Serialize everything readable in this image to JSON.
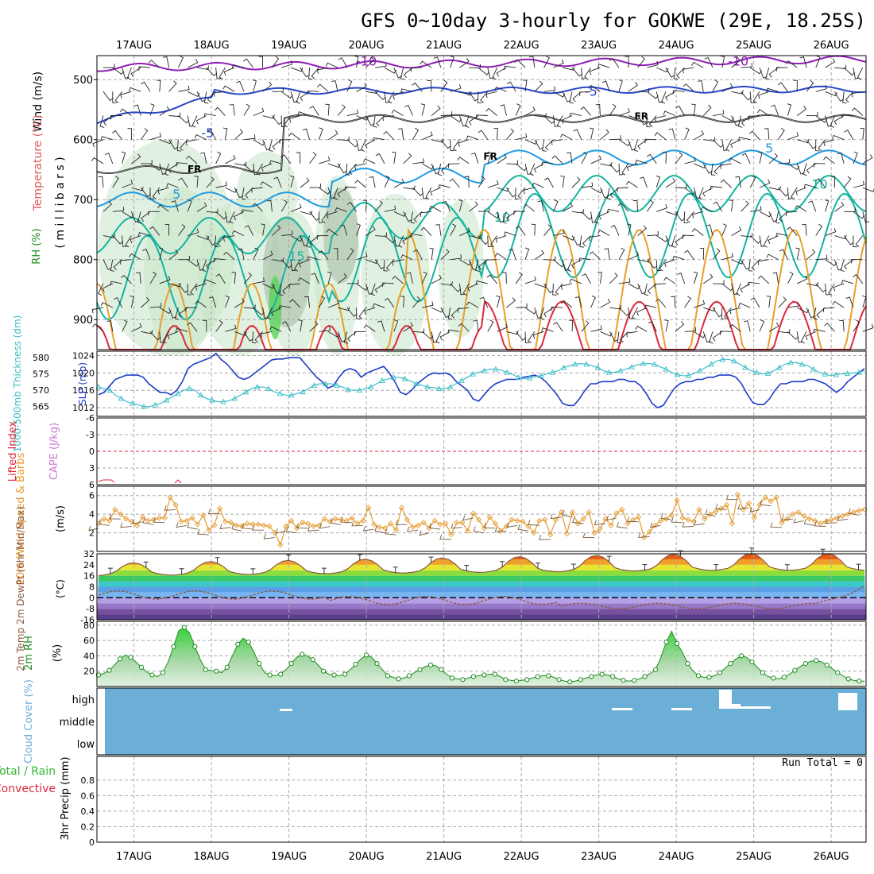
{
  "title": "GFS 0~10day 3-hourly for GOKWE (29E, 18.25S)",
  "date_labels": [
    "17AUG",
    "18AUG",
    "19AUG",
    "20AUG",
    "21AUG",
    "22AUG",
    "23AUG",
    "24AUG",
    "25AUG",
    "26AUG"
  ],
  "colors": {
    "purple": "#8e1eb4",
    "blue": "#2747c8",
    "freeze": "#000000",
    "lightblue": "#1e9be1",
    "teal": "#14b4a0",
    "orange": "#e6a028",
    "red": "#dc283c",
    "rh_green": "#c8e6c8",
    "slp": "#1e3cc8",
    "thick": "#3cbec8",
    "wind": "#e69b32",
    "barb": "#785a3c",
    "dew": "#8c5a3c",
    "rh2m": "#1e8c1e",
    "cloud_bg": "#6baed6",
    "cloud_white": "#ffffff",
    "grid": "#aaaaaa"
  },
  "panels": {
    "upper": {
      "ylabel_wind": "Wind (m/s)",
      "ylabel_temp": "Temperature (°C)",
      "ylabel_rh": "RH (%)",
      "ylabel_p": "( m i l l i b a r s )",
      "ticks": [
        500,
        600,
        700,
        800,
        900
      ],
      "range": [
        460,
        950
      ],
      "contour_labels": [
        {
          "t": "-10",
          "day": 3.0,
          "p": 470
        },
        {
          "t": "-10",
          "day": 7.8,
          "p": 470
        },
        {
          "t": "-5",
          "day": 5.9,
          "p": 520
        },
        {
          "t": "-5",
          "day": 0.95,
          "p": 590
        },
        {
          "t": "5",
          "day": 8.2,
          "p": 615
        },
        {
          "t": "5",
          "day": 0.55,
          "p": 692
        },
        {
          "t": "10",
          "day": 8.85,
          "p": 675
        },
        {
          "t": "10",
          "day": 4.75,
          "p": 730
        },
        {
          "t": "15",
          "day": 2.1,
          "p": 795
        },
        {
          "t": "FR",
          "day": 0.78,
          "p": 648
        },
        {
          "t": "FR",
          "day": 4.6,
          "p": 627
        },
        {
          "t": "FR",
          "day": 6.55,
          "p": 560
        }
      ]
    },
    "thickness": {
      "ylabel_left": "1000-500mb Thickness (dm)",
      "ylabel_right": "SLP (mb)",
      "left_ticks": [
        565,
        570,
        575,
        580
      ],
      "left_range": [
        562,
        582
      ],
      "right_ticks": [
        1012,
        1016,
        1020,
        1024
      ],
      "right_range": [
        1010,
        1025
      ],
      "slp": [
        1015,
        1015.5,
        1017,
        1018.5,
        1019,
        1019.5,
        1019.5,
        1019.5,
        1019,
        1017.5,
        1016.5,
        1015.5,
        1015.5,
        1015,
        1016,
        1018,
        1021,
        1022,
        1022.5,
        1023,
        1023.5,
        1024.5,
        1023,
        1022,
        1020.5,
        1019,
        1018.5,
        1019,
        1020,
        1021,
        1022,
        1023,
        1023.2,
        1023.2,
        1023.5,
        1023.5,
        1023.5,
        1022,
        1020.5,
        1019,
        1018,
        1016.5,
        1017,
        1019,
        1020.5,
        1021,
        1020.5,
        1019,
        1020,
        1020.5,
        1021,
        1021.5,
        1020,
        1018,
        1015.5,
        1015,
        1016,
        1017.5,
        1018.5,
        1019.5,
        1020,
        1019.8,
        1020,
        1019.5,
        1018,
        1017,
        1016,
        1014,
        1013.5,
        1015,
        1016.5,
        1017.5,
        1018,
        1018.5,
        1018.5,
        1018.5,
        1019,
        1019.2,
        1019.5,
        1019,
        1018,
        1016.5,
        1015,
        1013,
        1012.5,
        1012.5,
        1014,
        1016,
        1017.5,
        1017.5,
        1018,
        1018,
        1018,
        1018.5,
        1018.5,
        1018,
        1018,
        1017,
        1015.2,
        1013,
        1012,
        1012.5,
        1014.5,
        1016.5,
        1017.5,
        1018,
        1018,
        1018.5,
        1018.5,
        1019,
        1019,
        1019.5,
        1019.5,
        1019.5,
        1019,
        1017.5,
        1015.2,
        1013.2,
        1012.7,
        1012.7,
        1014,
        1016,
        1017.5,
        1017.5,
        1018,
        1018,
        1018,
        1018.5,
        1018.5,
        1018,
        1017.5,
        1016.5,
        1015.5,
        1016.5,
        1018,
        1019,
        1020,
        1021
      ],
      "thick": [
        571,
        570.5,
        570,
        568.5,
        567.5,
        566.5,
        566,
        565.5,
        565,
        565,
        565.5,
        566,
        567,
        568,
        569,
        570,
        570.5,
        570,
        568.5,
        567.5,
        567,
        566.5,
        566.5,
        566.8,
        567.5,
        568.5,
        569.5,
        570.5,
        571,
        571,
        570.5,
        569.5,
        569,
        568.5,
        568.5,
        569,
        569.5,
        570.5,
        571.5,
        572,
        572,
        572,
        571.5,
        571,
        570.2,
        570,
        570,
        570.5,
        571,
        572,
        573,
        573.5,
        574,
        574,
        573.5,
        572.8,
        572,
        571.5,
        571,
        570.8,
        570.5,
        570.5,
        571,
        572,
        573,
        574,
        575,
        575.5,
        576,
        576.5,
        576.5,
        576.2,
        575.5,
        574.8,
        574,
        573.5,
        573.8,
        574.2,
        574.5,
        575,
        575.5,
        576,
        577,
        577.5,
        578,
        578.2,
        578,
        577.5,
        577,
        576,
        575.5,
        575.5,
        576,
        576.5,
        577.2,
        577.8,
        578.2,
        578.2,
        578,
        577.2,
        576.5,
        575.5,
        574.8,
        574.5,
        574.5,
        575.2,
        576,
        577,
        578,
        579,
        579.5,
        579.5,
        579,
        578,
        577,
        576,
        575.5,
        575,
        575.2,
        576,
        577,
        578,
        578.5,
        578.5,
        578,
        577.5,
        576.5,
        575.5,
        575,
        574.5,
        574.8,
        575,
        575.2,
        575.3,
        575.5,
        576
      ]
    },
    "cape": {
      "ylabel_left": "Lifted Index",
      "ylabel_right": "CAPE (J/kg)",
      "ticks": [
        "-6",
        "-3",
        "0",
        "3",
        "6"
      ]
    },
    "wind10m": {
      "ylabel": "10m Wind Speed & Barbs",
      "unit": "(m/s)",
      "ticks": [
        2,
        4,
        6
      ],
      "range": [
        0,
        7
      ],
      "speed": [
        3,
        3.5,
        3.3,
        4.5,
        4,
        3.5,
        3.2,
        2.8,
        3.7,
        3.3,
        3.4,
        3.6,
        3.6,
        5.8,
        5,
        3.2,
        3.3,
        3.6,
        2.9,
        3.9,
        2.3,
        2.8,
        4.6,
        3.2,
        3.1,
        2.8,
        2.7,
        3.0,
        2.9,
        2.9,
        2.8,
        2.7,
        2.0,
        0.7,
        2.7,
        3.3,
        2.5,
        3.1,
        3.0,
        2.7,
        2.8,
        3.5,
        3.2,
        3.5,
        3.4,
        3.3,
        3.6,
        3.0,
        3.3,
        4.7,
        2.9,
        2.6,
        2.5,
        3.0,
        2.3,
        4.7,
        3.4,
        2.6,
        2.8,
        3.1,
        2.5,
        3.3,
        2.9,
        3.0,
        1.8,
        3.1,
        3.1,
        2.2,
        4.1,
        3.4,
        2.5,
        3.7,
        3.0,
        2.2,
        2.7,
        3.4,
        3.3,
        3.2,
        2.7,
        2.0,
        3.3,
        3.4,
        1.8,
        3.4,
        4.2,
        1.9,
        4.2,
        3.0,
        3.5,
        4.2,
        2.0,
        2.4,
        3.5,
        2.8,
        4.1,
        4.5,
        3.0,
        3.4,
        3.7,
        1.5,
        2.1,
        2.8,
        3.3,
        3.5,
        3.9,
        5.5,
        3.6,
        3.4,
        3.2,
        4.5,
        3.5,
        4.0,
        4.3,
        4.6,
        5.0,
        3.0,
        6.1,
        4.5,
        5.2,
        3.6,
        5.0,
        5.8,
        5.4,
        5.8,
        3.1,
        3.5,
        4.0,
        4.2,
        3.8,
        3.5,
        3.3,
        3.0,
        3.2,
        3.4,
        3.6,
        3.8,
        4.0,
        4.2,
        4.4,
        4.5
      ]
    },
    "temp2m": {
      "ylabel": "2m Temp 2m DewPt (6hr Min/Max)",
      "unit": "(°C)",
      "ticks": [
        32,
        24,
        16,
        8,
        0,
        -8,
        -16
      ],
      "range": [
        -16,
        32
      ]
    },
    "rh2m": {
      "ylabel": "2m RH",
      "unit": "(%)",
      "ticks": [
        20,
        40,
        60,
        80
      ],
      "range": [
        0,
        85
      ],
      "values": [
        15,
        17,
        21,
        28,
        36,
        41,
        38,
        32,
        25,
        19,
        15,
        13,
        18,
        32,
        52,
        73,
        77,
        70,
        52,
        35,
        22,
        21,
        20,
        18,
        25,
        40,
        55,
        63,
        58,
        45,
        30,
        18,
        15,
        14,
        16,
        22,
        30,
        38,
        42,
        40,
        35,
        28,
        20,
        16,
        15,
        14,
        16,
        22,
        29,
        36,
        41,
        38,
        30,
        22,
        14,
        12,
        10,
        11,
        14,
        18,
        22,
        26,
        28,
        27,
        22,
        16,
        11,
        10,
        9,
        11,
        13,
        14,
        15,
        16,
        16,
        13,
        9,
        8,
        7,
        8,
        9,
        11,
        13,
        14,
        14,
        12,
        9,
        7,
        6,
        7,
        9,
        11,
        13,
        15,
        16,
        15,
        13,
        10,
        8,
        7,
        8,
        10,
        13,
        17,
        22,
        38,
        58,
        72,
        56,
        45,
        30,
        20,
        14,
        12,
        12,
        14,
        18,
        24,
        30,
        36,
        40,
        38,
        32,
        25,
        18,
        13,
        11,
        10,
        12,
        16,
        21,
        26,
        30,
        33,
        34,
        32,
        28,
        23,
        18,
        14,
        10,
        8,
        7,
        7
      ]
    },
    "cloud": {
      "ylabel": "Cloud Cover (%)",
      "levels": [
        "high",
        "middle",
        "low"
      ]
    },
    "precip": {
      "ylabel": "3hr Precip (mm)",
      "legend_total": "Total / Rain",
      "legend_conv": "Convective",
      "ticks": [
        "0",
        "0.2",
        "0.4",
        "0.6",
        "0.8"
      ],
      "range": [
        0,
        1
      ],
      "run_total": "Run Total = 0"
    }
  }
}
